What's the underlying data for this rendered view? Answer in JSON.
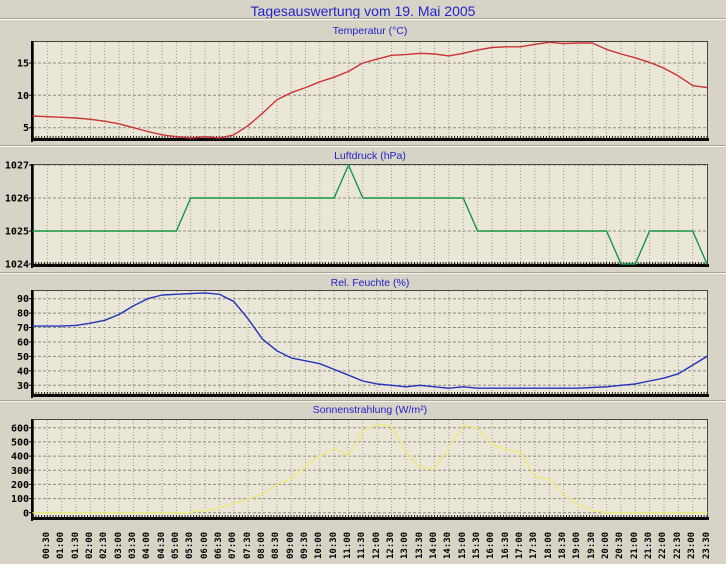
{
  "page": {
    "title": "Tagesauswertung vom 19. Mai 2005",
    "title_color": "#2222cc",
    "background_color": "#d7d3c6",
    "plot_background_color": "#eae7d9",
    "grid_color_horizontal": "#8c8c80",
    "grid_color_vertical": "#9a9a8c",
    "axis_color": "#000000"
  },
  "x_axis": {
    "start_hour": 0,
    "end_hour": 23.5,
    "step_hours": 0.5,
    "tick_labels": [
      "00:30",
      "01:00",
      "01:30",
      "02:00",
      "02:30",
      "03:00",
      "03:30",
      "04:00",
      "04:30",
      "05:00",
      "05:30",
      "06:00",
      "06:30",
      "07:00",
      "07:30",
      "08:00",
      "08:30",
      "09:00",
      "09:30",
      "10:00",
      "10:30",
      "11:00",
      "11:30",
      "12:00",
      "12:30",
      "13:00",
      "13:30",
      "14:00",
      "14:30",
      "15:00",
      "15:30",
      "16:00",
      "16:30",
      "17:00",
      "17:30",
      "18:00",
      "18:30",
      "19:00",
      "19:30",
      "20:00",
      "20:30",
      "21:00",
      "21:30",
      "22:00",
      "22:30",
      "23:00",
      "23:30"
    ]
  },
  "chart_data": [
    {
      "id": "temperature",
      "type": "line",
      "title": "Temperatur (°C)",
      "color": "#cc3333",
      "ylim": [
        3.4,
        18.25
      ],
      "yticks": [
        5,
        10,
        15
      ],
      "x_start_hour": 0,
      "x_step_hours": 0.5,
      "values": [
        6.8,
        6.7,
        6.6,
        6.5,
        6.3,
        6.0,
        5.6,
        5.0,
        4.4,
        3.9,
        3.6,
        3.4,
        3.6,
        3.4,
        3.9,
        5.3,
        7.2,
        9.3,
        10.4,
        11.2,
        12.1,
        12.8,
        13.7,
        15.0,
        15.6,
        16.2,
        16.3,
        16.5,
        16.4,
        16.1,
        16.5,
        17.0,
        17.4,
        17.5,
        17.5,
        17.9,
        18.2,
        18.0,
        18.1,
        18.1,
        17.1,
        16.4,
        15.8,
        15.1,
        14.2,
        13.0,
        11.5,
        11.2
      ]
    },
    {
      "id": "pressure",
      "type": "line",
      "title": "Luftdruck (hPa)",
      "color": "#149540",
      "ylim": [
        1024,
        1027
      ],
      "yticks": [
        1024,
        1025,
        1026,
        1027
      ],
      "x_start_hour": 0,
      "x_step_hours": 0.5,
      "values": [
        1025,
        1025,
        1025,
        1025,
        1025,
        1025,
        1025,
        1025,
        1025,
        1025,
        1025,
        1026,
        1026,
        1026,
        1026,
        1026,
        1026,
        1026,
        1026,
        1026,
        1026,
        1026,
        1027,
        1026,
        1026,
        1026,
        1026,
        1026,
        1026,
        1026,
        1026,
        1025,
        1025,
        1025,
        1025,
        1025,
        1025,
        1025,
        1025,
        1025,
        1025,
        1024,
        1024,
        1025,
        1025,
        1025,
        1025,
        1024
      ]
    },
    {
      "id": "humidity",
      "type": "line",
      "title": "Rel. Feuchte (%)",
      "color": "#2233bb",
      "ylim": [
        24,
        95.3
      ],
      "yticks": [
        30,
        40,
        50,
        60,
        70,
        80,
        90
      ],
      "x_start_hour": 0,
      "x_step_hours": 0.5,
      "values": [
        71,
        71,
        71,
        71.5,
        73,
        75,
        79,
        85,
        90,
        92.5,
        93,
        93.5,
        94,
        93,
        88,
        76,
        62,
        54,
        49,
        47,
        45,
        41,
        37,
        33,
        31,
        30,
        29,
        30,
        29,
        28,
        29,
        28,
        28,
        28,
        28,
        28,
        28,
        28,
        28,
        28.5,
        29,
        30,
        31,
        33,
        35,
        38,
        44,
        50
      ]
    },
    {
      "id": "radiation",
      "type": "line",
      "title": "Sonnenstrahlung (W/m²)",
      "color": "#ece97c",
      "ylim": [
        -30,
        655
      ],
      "yticks": [
        0,
        100,
        200,
        300,
        400,
        500,
        600
      ],
      "x_start_hour": 0,
      "x_step_hours": 0.5,
      "values": [
        0,
        0,
        0,
        0,
        0,
        0,
        0,
        0,
        0,
        0,
        0,
        3,
        15,
        35,
        65,
        95,
        130,
        200,
        240,
        330,
        400,
        455,
        400,
        580,
        625,
        610,
        430,
        320,
        310,
        460,
        615,
        600,
        485,
        445,
        430,
        255,
        235,
        130,
        60,
        15,
        0,
        0,
        0,
        0,
        0,
        0,
        0,
        0
      ]
    }
  ]
}
